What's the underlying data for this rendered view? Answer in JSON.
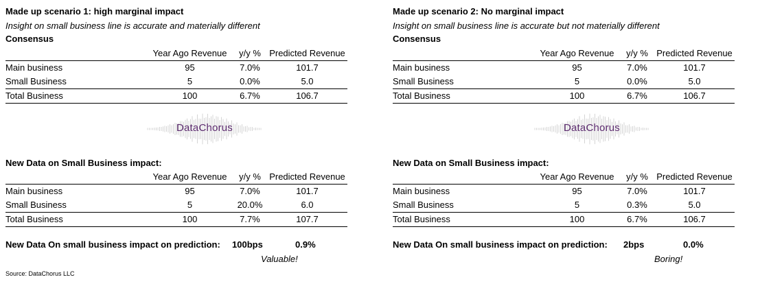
{
  "scenarios": [
    {
      "title": "Made up scenario 1: high marginal impact",
      "subtitle": "Insight on small business line is accurate and materially different",
      "consensus_label": "Consensus",
      "headers": [
        "",
        "Year Ago Revenue",
        "y/y %",
        "Predicted Revenue"
      ],
      "consensus_rows": [
        [
          "Main business",
          "95",
          "7.0%",
          "101.7"
        ],
        [
          "Small Business",
          "5",
          "0.0%",
          "5.0"
        ],
        [
          "Total Business",
          "100",
          "6.7%",
          "106.7"
        ]
      ],
      "logo_text": "DataChorus",
      "new_data_label": "New Data on Small Business impact:",
      "new_data_rows": [
        [
          "Main business",
          "95",
          "7.0%",
          "101.7"
        ],
        [
          "Small Business",
          "5",
          "20.0%",
          "6.0"
        ],
        [
          "Total Business",
          "100",
          "7.7%",
          "107.7"
        ]
      ],
      "impact_label": "New Data On small business impact on prediction:",
      "impact_bps": "100bps",
      "impact_pct": "0.9%",
      "verdict": "Valuable!"
    },
    {
      "title": "Made up scenario 2:  No marginal impact",
      "subtitle": "Insight on small business line is accurate but not materially different",
      "consensus_label": "Consensus",
      "headers": [
        "",
        "Year Ago Revenue",
        "y/y %",
        "Predicted Revenue"
      ],
      "consensus_rows": [
        [
          "Main business",
          "95",
          "7.0%",
          "101.7"
        ],
        [
          "Small Business",
          "5",
          "0.0%",
          "5.0"
        ],
        [
          "Total Business",
          "100",
          "6.7%",
          "106.7"
        ]
      ],
      "logo_text": "DataChorus",
      "new_data_label": "New Data on Small Business impact:",
      "new_data_rows": [
        [
          "Main business",
          "95",
          "7.0%",
          "101.7"
        ],
        [
          "Small Business",
          "5",
          "0.3%",
          "5.0"
        ],
        [
          "Total Business",
          "100",
          "6.7%",
          "106.7"
        ]
      ],
      "impact_label": "New Data On small business impact on prediction:",
      "impact_bps": "2bps",
      "impact_pct": "0.0%",
      "verdict": "Boring!"
    }
  ],
  "source": "Source: DataChorus LLC",
  "colors": {
    "logo_text": "#5b2a6e",
    "logo_wave": "#d4d4d4"
  }
}
